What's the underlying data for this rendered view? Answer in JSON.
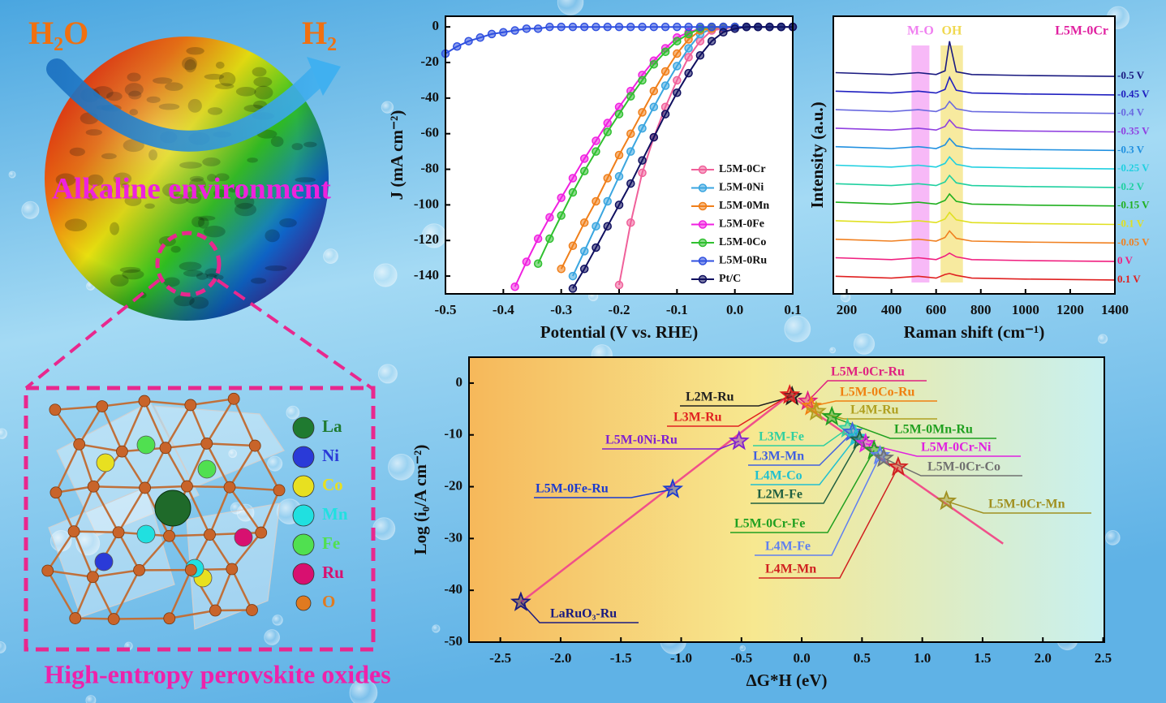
{
  "illustration": {
    "reactant": "H₂O",
    "product": "H₂",
    "environment": "Alkaline environment",
    "caption": "High-entropy perovskite oxides",
    "atoms": [
      {
        "label": "La",
        "color": "#1f7a30"
      },
      {
        "label": "Ni",
        "color": "#2a3ad8"
      },
      {
        "label": "Co",
        "color": "#e8e020"
      },
      {
        "label": "Mn",
        "color": "#20e0e0"
      },
      {
        "label": "Fe",
        "color": "#50e050"
      },
      {
        "label": "Ru",
        "color": "#d81070"
      },
      {
        "label": "O",
        "color": "#e07a20"
      }
    ]
  },
  "chart_data": [
    {
      "type": "line",
      "markers": true,
      "legend": "right",
      "x_label": "Potential (V vs. RHE)",
      "y_label": "J (mA cm⁻²)",
      "x": [
        -0.5,
        -0.48,
        -0.46,
        -0.44,
        -0.42,
        -0.4,
        -0.38,
        -0.36,
        -0.34,
        -0.32,
        -0.3,
        -0.28,
        -0.26,
        -0.24,
        -0.22,
        -0.2,
        -0.18,
        -0.16,
        -0.14,
        -0.12,
        -0.1,
        -0.08,
        -0.06,
        -0.04,
        -0.02,
        0,
        0.02,
        0.04,
        0.06,
        0.08,
        0.1
      ],
      "xlim": [
        -0.5,
        0.1
      ],
      "xticks": [
        -0.5,
        -0.4,
        -0.3,
        -0.2,
        -0.1,
        {
          "value": 0,
          "label": "0.0"
        },
        0.1
      ],
      "ylim": [
        -150,
        6
      ],
      "yticks": [
        0,
        -20,
        -40,
        -60,
        -80,
        -100,
        -120,
        -140
      ],
      "series": [
        {
          "name": "L5M-0Cr",
          "color": "#f0609a",
          "values": [
            null,
            null,
            null,
            null,
            null,
            null,
            null,
            null,
            null,
            null,
            null,
            null,
            null,
            null,
            null,
            -145,
            -110,
            -82,
            -62,
            -45,
            -30,
            -17,
            -8,
            -2,
            -1,
            0,
            0,
            0,
            0,
            0,
            0
          ]
        },
        {
          "name": "L5M-0Ni",
          "color": "#3aa6e0",
          "values": [
            null,
            null,
            null,
            null,
            null,
            null,
            null,
            null,
            null,
            null,
            null,
            -140,
            -126,
            -112,
            -98,
            -84,
            -70,
            -57,
            -45,
            -33,
            -22,
            -12,
            -4,
            -1,
            0,
            0,
            0,
            0,
            0,
            0,
            0
          ]
        },
        {
          "name": "L5M-0Mn",
          "color": "#f07f1a",
          "values": [
            null,
            null,
            null,
            null,
            null,
            null,
            null,
            null,
            null,
            null,
            -136,
            -123,
            -110,
            -98,
            -85,
            -72,
            -60,
            -48,
            -36,
            -25,
            -15,
            -7,
            -2,
            -1,
            0,
            0,
            0,
            0,
            0,
            0,
            0
          ]
        },
        {
          "name": "L5M-0Fe",
          "color": "#f020e0",
          "values": [
            null,
            null,
            null,
            null,
            null,
            null,
            -146,
            -132,
            -119,
            -107,
            -96,
            -85,
            -74,
            -64,
            -54,
            -45,
            -36,
            -27,
            -19,
            -12,
            -6,
            -3,
            -1,
            0,
            0,
            0,
            0,
            0,
            0,
            0,
            0
          ]
        },
        {
          "name": "L5M-0Co",
          "color": "#30c030",
          "values": [
            null,
            null,
            null,
            null,
            null,
            null,
            null,
            null,
            -133,
            -119,
            -106,
            -93,
            -81,
            -70,
            -59,
            -49,
            -39,
            -30,
            -21,
            -14,
            -8,
            -4,
            -1,
            0,
            0,
            0,
            0,
            0,
            0,
            0,
            0
          ]
        },
        {
          "name": "L5M-0Ru",
          "color": "#3050e0",
          "values": [
            -15,
            -11,
            -8,
            -6,
            -4,
            -3,
            -2,
            -1,
            -1,
            0,
            0,
            0,
            0,
            0,
            0,
            0,
            0,
            0,
            0,
            0,
            0,
            0,
            0,
            0,
            0,
            0,
            0,
            0,
            0,
            0,
            0
          ]
        },
        {
          "name": "Pt/C",
          "color": "#101060",
          "values": [
            null,
            null,
            null,
            null,
            null,
            null,
            null,
            null,
            null,
            null,
            null,
            -147,
            -136,
            -124,
            -112,
            -100,
            -88,
            -75,
            -62,
            -49,
            -37,
            -26,
            -16,
            -8,
            -3,
            -1,
            0,
            0,
            0,
            0,
            0
          ]
        }
      ]
    },
    {
      "type": "line",
      "markers": false,
      "legend": "inline",
      "annotation": "L5M-0Cr",
      "x_label": "Raman shift (cm⁻¹)",
      "y_label": "Intensity (a.u.)",
      "x": [
        150,
        400,
        520,
        600,
        640,
        660,
        690,
        760,
        1000,
        1400
      ],
      "xlim": [
        140,
        1400
      ],
      "xticks": [
        200,
        400,
        600,
        800,
        1000,
        1200,
        1400
      ],
      "ylim": [
        0,
        15
      ],
      "bands": [
        {
          "label": "M-O",
          "range": [
            490,
            570
          ],
          "color": "#f080f0"
        },
        {
          "label": "OH",
          "range": [
            620,
            720
          ],
          "color": "#f0d850"
        }
      ],
      "series": [
        {
          "name": "-0.5 V",
          "color": "#1a1a80",
          "values": [
            11.95,
            11.85,
            11.95,
            11.85,
            12.05,
            13.65,
            12.0,
            11.85,
            11.8,
            11.75
          ]
        },
        {
          "name": "-0.45 V",
          "color": "#2020c0",
          "values": [
            10.95,
            10.85,
            10.95,
            10.85,
            11.05,
            11.7,
            11.0,
            10.85,
            10.8,
            10.75
          ]
        },
        {
          "name": "-0.4 V",
          "color": "#6a6ae0",
          "values": [
            9.95,
            9.85,
            9.95,
            9.85,
            10.05,
            10.4,
            10.0,
            9.85,
            9.8,
            9.75
          ]
        },
        {
          "name": "-0.35 V",
          "color": "#9040e0",
          "values": [
            8.95,
            8.85,
            8.95,
            8.85,
            9.05,
            9.4,
            9.0,
            8.85,
            8.8,
            8.75
          ]
        },
        {
          "name": "-0.3 V",
          "color": "#2090e0",
          "values": [
            7.95,
            7.85,
            7.95,
            7.85,
            8.05,
            8.4,
            8.0,
            7.85,
            7.8,
            7.75
          ]
        },
        {
          "name": "-0.25 V",
          "color": "#20d0e0",
          "values": [
            6.95,
            6.85,
            6.95,
            6.85,
            7.05,
            7.4,
            7.0,
            6.85,
            6.8,
            6.75
          ]
        },
        {
          "name": "-0.2 V",
          "color": "#20d0a0",
          "values": [
            5.95,
            5.85,
            5.95,
            5.85,
            6.05,
            6.4,
            6.0,
            5.85,
            5.8,
            5.75
          ]
        },
        {
          "name": "-0.15 V",
          "color": "#20b020",
          "values": [
            4.95,
            4.85,
            4.95,
            4.85,
            5.05,
            5.4,
            5.0,
            4.85,
            4.8,
            4.75
          ]
        },
        {
          "name": "-0.1 V",
          "color": "#e0e020",
          "values": [
            3.95,
            3.85,
            3.95,
            3.85,
            4.05,
            4.4,
            4.0,
            3.85,
            3.8,
            3.75
          ]
        },
        {
          "name": "-0.05 V",
          "color": "#f08020",
          "values": [
            2.95,
            2.85,
            2.95,
            2.85,
            3.05,
            3.4,
            3.0,
            2.85,
            2.8,
            2.75
          ]
        },
        {
          "name": "0 V",
          "color": "#f02080",
          "values": [
            1.95,
            1.85,
            1.95,
            1.85,
            2.05,
            2.2,
            2.0,
            1.85,
            1.8,
            1.75
          ]
        },
        {
          "name": "0.1 V",
          "color": "#e02020",
          "values": [
            0.95,
            0.85,
            0.95,
            0.85,
            1.05,
            1.1,
            1.0,
            0.85,
            0.8,
            0.75
          ]
        }
      ]
    },
    {
      "type": "scatter",
      "x_label": "ΔG*H (eV)",
      "y_label": "Log (i₀/A cm⁻²)",
      "xlim": [
        -2.76,
        2.51
      ],
      "xticks": [
        -2.5,
        {
          "value": -2,
          "label": "-2.0"
        },
        -1.5,
        {
          "value": -1,
          "label": "-1.0"
        },
        -0.5,
        {
          "value": 0,
          "label": "0.0"
        },
        0.5,
        {
          "value": 1,
          "label": "1.0"
        },
        1.5,
        {
          "value": 2,
          "label": "2.0"
        },
        2.5
      ],
      "ylim": [
        -50,
        5
      ],
      "yticks": [
        0,
        -10,
        -20,
        -30,
        -40,
        -50
      ],
      "trend": {
        "color": "#f0508a",
        "x": [
          -2.33,
          -0.1,
          1.67
        ],
        "values": [
          -42.3,
          -2.3,
          -31
        ]
      },
      "points": [
        {
          "label": "LaRuO₃-Ru",
          "x": -2.33,
          "y": -42.3,
          "color": "#1a1a80"
        },
        {
          "label": "L5M-0Fe-Ru",
          "x": -1.07,
          "y": -20.5,
          "color": "#1a3ad0"
        },
        {
          "label": "L5M-0Ni-Ru",
          "x": -0.52,
          "y": -11.2,
          "color": "#8020d0"
        },
        {
          "label": "L2M-Ru",
          "x": -0.08,
          "y": -2.6,
          "color": "#202020"
        },
        {
          "label": "L3M-Ru",
          "x": -0.1,
          "y": -2.3,
          "color": "#e02020"
        },
        {
          "label": "L5M-0Cr-Ru",
          "x": 0.05,
          "y": -3.5,
          "color": "#e02080"
        },
        {
          "label": "L5M-0Co-Ru",
          "x": 0.08,
          "y": -4.5,
          "color": "#f08010"
        },
        {
          "label": "L4M-Ru",
          "x": 0.12,
          "y": -5.5,
          "color": "#b0a020"
        },
        {
          "label": "L5M-0Mn-Ru",
          "x": 0.25,
          "y": -6.5,
          "color": "#20a020"
        },
        {
          "label": "L3M-Fe",
          "x": 0.38,
          "y": -8.8,
          "color": "#30d0a0"
        },
        {
          "label": "L3M-Mn",
          "x": 0.42,
          "y": -9.5,
          "color": "#4060e0"
        },
        {
          "label": "L4M-Co",
          "x": 0.45,
          "y": -10.5,
          "color": "#20c0d0"
        },
        {
          "label": "L2M-Fe",
          "x": 0.48,
          "y": -11,
          "color": "#206040"
        },
        {
          "label": "L5M-0Cr-Ni",
          "x": 0.53,
          "y": -11.7,
          "color": "#e020e0"
        },
        {
          "label": "L5M-0Cr-Fe",
          "x": 0.6,
          "y": -13,
          "color": "#20a020"
        },
        {
          "label": "L4M-Fe",
          "x": 0.65,
          "y": -14,
          "color": "#6080f0"
        },
        {
          "label": "L5M-0Cr-Co",
          "x": 0.68,
          "y": -14.5,
          "color": "#707070"
        },
        {
          "label": "L4M-Mn",
          "x": 0.8,
          "y": -16.2,
          "color": "#d02020"
        },
        {
          "label": "L5M-0Cr-Mn",
          "x": 1.2,
          "y": -22.8,
          "color": "#a09020"
        }
      ]
    }
  ]
}
